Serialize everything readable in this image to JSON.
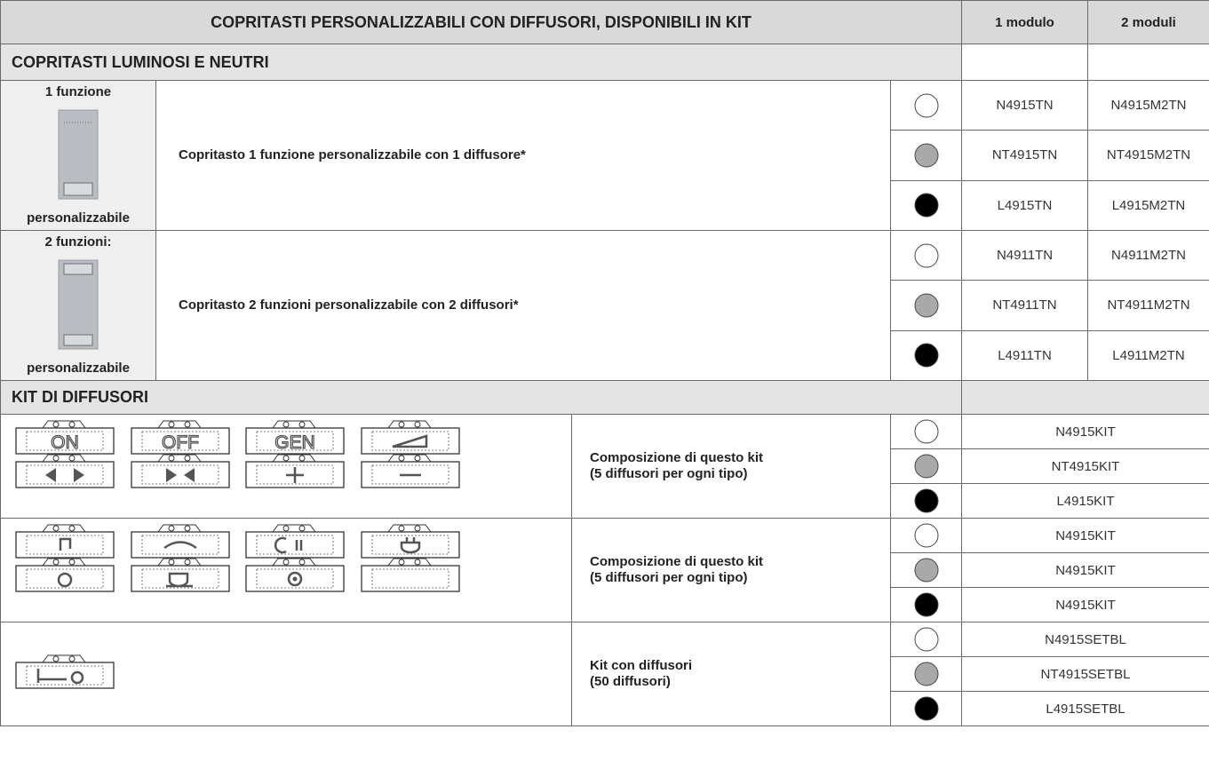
{
  "table": {
    "title": "COPRITASTI PERSONALIZZABILI CON DIFFUSORI, DISPONIBILI IN KIT",
    "columns": [
      "1 modulo",
      "2 moduli"
    ],
    "section1": {
      "title": "COPRITASTI LUMINOSI E NEUTRI",
      "groups": [
        {
          "label_top": "1 funzione",
          "label_bottom": "personalizzabile",
          "description": "Copritasto 1 funzione personalizzabile con 1 diffusore*",
          "codes": [
            [
              "N4915TN",
              "N4915M2TN"
            ],
            [
              "NT4915TN",
              "NT4915M2TN"
            ],
            [
              "L4915TN",
              "L4915M2TN"
            ]
          ]
        },
        {
          "label_top": "2 funzioni:",
          "label_bottom": "personalizzabile",
          "description": "Copritasto 2 funzioni personalizzabile con 2 diffusori*",
          "codes": [
            [
              "N4911TN",
              "N4911M2TN"
            ],
            [
              "NT4911TN",
              "NT4911M2TN"
            ],
            [
              "L4911TN",
              "L4911M2TN"
            ]
          ]
        }
      ]
    },
    "section2": {
      "title": "KIT DI DIFFUSORI",
      "kits": [
        {
          "icon_labels": [
            "ON",
            "OFF",
            "GEN"
          ],
          "description": [
            "Composizione di questo kit",
            "(5 diffusori per ogni tipo)"
          ],
          "codes": [
            "N4915KIT",
            "NT4915KIT",
            "L4915KIT"
          ]
        },
        {
          "description": [
            "Composizione di questo kit",
            "(5 diffusori per ogni tipo)"
          ],
          "codes": [
            "N4915KIT",
            "N4915KIT",
            "N4915KIT"
          ]
        },
        {
          "description": [
            "Kit con diffusori",
            "(50 diffusori)"
          ],
          "codes": [
            "N4915SETBL",
            "NT4915SETBL",
            "L4915SETBL"
          ]
        }
      ]
    }
  }
}
